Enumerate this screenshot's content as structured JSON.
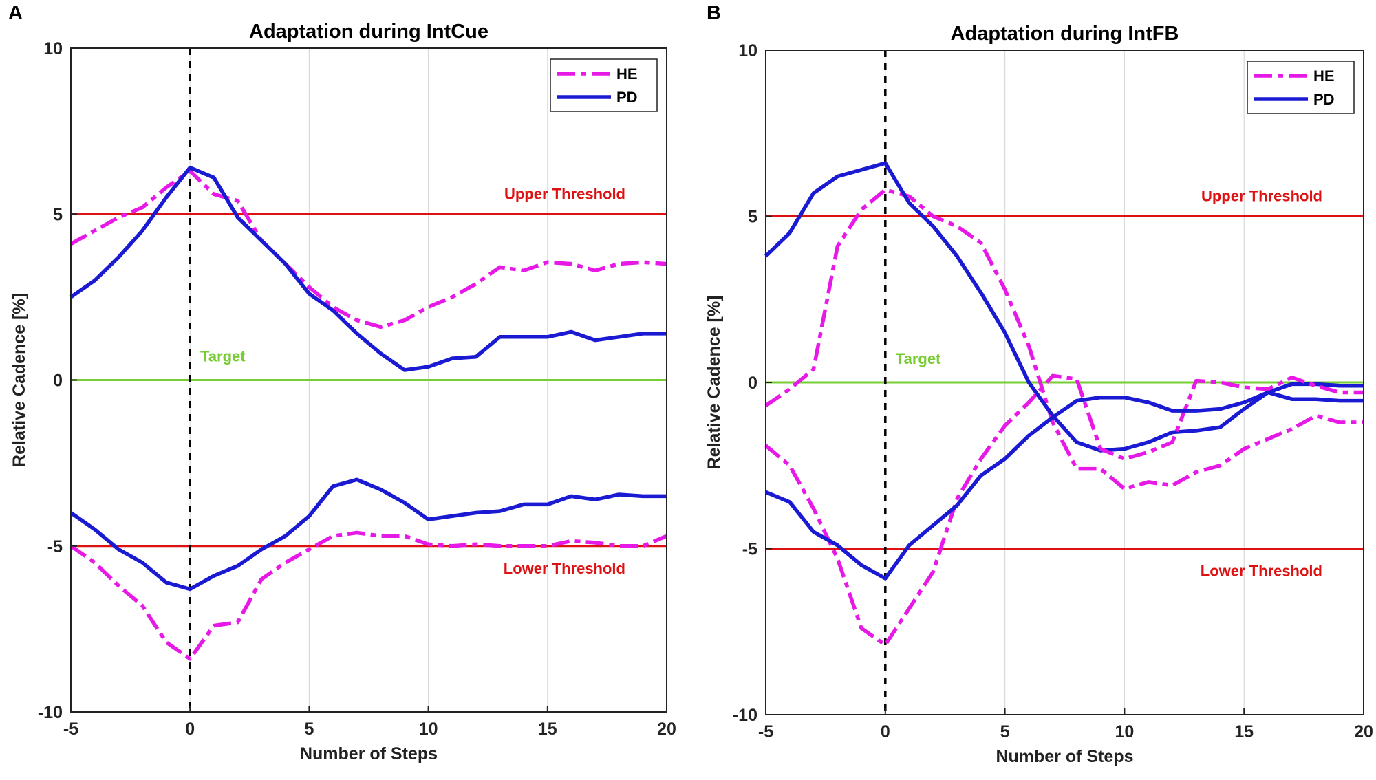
{
  "figure": {
    "colors": {
      "HE": "#e619e6",
      "PD": "#1a1ad2",
      "threshold": "#dd1111",
      "target": "#77cc33",
      "axis": "#222222",
      "grid": "#d9d9d9"
    }
  },
  "chart_data": [
    {
      "panel_letter": "A",
      "type": "line",
      "title": "Adaptation during IntCue",
      "xlabel": "Number of Steps",
      "ylabel": "Relative Cadence [%]",
      "xlim": [
        -5,
        20
      ],
      "ylim": [
        -10,
        10
      ],
      "xticks": [
        "-5",
        "0",
        "5",
        "10",
        "15",
        "20"
      ],
      "yticks": [
        "-10",
        "-5",
        "0",
        "5",
        "10"
      ],
      "grid": "vertical lines",
      "legend": {
        "position": "top-right",
        "entries": [
          "HE",
          "PD"
        ]
      },
      "reference_lines": [
        {
          "label": "Upper Threshold",
          "y": 5,
          "color": "threshold"
        },
        {
          "label": "Target",
          "y": 0,
          "color": "target"
        },
        {
          "label": "Lower Threshold",
          "y": -5,
          "color": "threshold"
        }
      ],
      "vertical_marker_x": 0,
      "x": [
        -5,
        -4,
        -3,
        -2,
        -1,
        0,
        1,
        2,
        3,
        4,
        5,
        6,
        7,
        8,
        9,
        10,
        11,
        12,
        13,
        14,
        15,
        16,
        17,
        18,
        19,
        20
      ],
      "series": [
        {
          "name": "HE",
          "style": "dashdot",
          "values": [
            4.1,
            4.5,
            4.9,
            5.2,
            5.8,
            6.3,
            5.6,
            5.4,
            4.2,
            3.5,
            2.8,
            2.2,
            1.8,
            1.6,
            1.8,
            2.2,
            2.5,
            2.9,
            3.4,
            3.3,
            3.55,
            3.5,
            3.3,
            3.5,
            3.55,
            3.5
          ]
        },
        {
          "name": "PD",
          "style": "solid",
          "values": [
            2.5,
            3.0,
            3.7,
            4.5,
            5.5,
            6.4,
            6.1,
            4.9,
            4.2,
            3.5,
            2.6,
            2.1,
            1.4,
            0.8,
            0.3,
            0.4,
            0.65,
            0.7,
            1.3,
            1.3,
            1.3,
            1.45,
            1.2,
            1.3,
            1.4,
            1.4
          ]
        },
        {
          "name": "HE",
          "style": "dashdot",
          "values": [
            -5.0,
            -5.5,
            -6.2,
            -6.8,
            -7.9,
            -8.4,
            -7.4,
            -7.3,
            -6.0,
            -5.5,
            -5.1,
            -4.7,
            -4.6,
            -4.7,
            -4.7,
            -4.95,
            -5.0,
            -4.95,
            -5.0,
            -5.0,
            -5.0,
            -4.85,
            -4.9,
            -5.0,
            -5.0,
            -4.7
          ]
        },
        {
          "name": "PD",
          "style": "solid",
          "values": [
            -4.0,
            -4.5,
            -5.1,
            -5.5,
            -6.1,
            -6.3,
            -5.9,
            -5.6,
            -5.1,
            -4.7,
            -4.1,
            -3.2,
            -3.0,
            -3.3,
            -3.7,
            -4.2,
            -4.1,
            -4.0,
            -3.95,
            -3.75,
            -3.75,
            -3.5,
            -3.6,
            -3.45,
            -3.5,
            -3.5
          ]
        }
      ]
    },
    {
      "panel_letter": "B",
      "type": "line",
      "title": "Adaptation during IntFB",
      "xlabel": "Number of Steps",
      "ylabel": "Relative Cadence [%]",
      "xlim": [
        -5,
        20
      ],
      "ylim": [
        -10,
        10
      ],
      "xticks": [
        "-5",
        "0",
        "5",
        "10",
        "15",
        "20"
      ],
      "yticks": [
        "-10",
        "-5",
        "0",
        "5",
        "10"
      ],
      "grid": "vertical lines",
      "legend": {
        "position": "top-right",
        "entries": [
          "HE",
          "PD"
        ]
      },
      "reference_lines": [
        {
          "label": "Upper Threshold",
          "y": 5,
          "color": "threshold"
        },
        {
          "label": "Target",
          "y": 0,
          "color": "target"
        },
        {
          "label": "Lower Threshold",
          "y": -5,
          "color": "threshold"
        }
      ],
      "vertical_marker_x": 0,
      "x": [
        -5,
        -4,
        -3,
        -2,
        -1,
        0,
        1,
        2,
        3,
        4,
        5,
        6,
        7,
        8,
        9,
        10,
        11,
        12,
        13,
        14,
        15,
        16,
        17,
        18,
        19,
        20
      ],
      "series": [
        {
          "name": "HE",
          "style": "dashdot",
          "values": [
            -0.7,
            -0.2,
            0.4,
            4.1,
            5.2,
            5.8,
            5.6,
            5.0,
            4.7,
            4.2,
            2.8,
            1.1,
            -1.2,
            -2.6,
            -2.6,
            -3.2,
            -3.0,
            -3.1,
            -2.7,
            -2.5,
            -2.0,
            -1.7,
            -1.4,
            -1.0,
            -1.2,
            -1.2
          ]
        },
        {
          "name": "PD",
          "style": "solid",
          "values": [
            3.8,
            4.5,
            5.7,
            6.2,
            6.4,
            6.6,
            5.4,
            4.7,
            3.8,
            2.7,
            1.5,
            0.0,
            -1.0,
            -1.8,
            -2.05,
            -2.0,
            -1.8,
            -1.5,
            -1.45,
            -1.35,
            -0.8,
            -0.3,
            -0.05,
            -0.05,
            -0.1,
            -0.1
          ]
        },
        {
          "name": "HE",
          "style": "dashdot",
          "values": [
            -1.9,
            -2.5,
            -3.8,
            -5.3,
            -7.4,
            -7.9,
            -6.8,
            -5.7,
            -3.5,
            -2.3,
            -1.3,
            -0.6,
            0.2,
            0.1,
            -2.0,
            -2.3,
            -2.1,
            -1.8,
            0.05,
            0.0,
            -0.15,
            -0.2,
            0.15,
            -0.1,
            -0.3,
            -0.3
          ]
        },
        {
          "name": "PD",
          "style": "solid",
          "values": [
            -3.3,
            -3.6,
            -4.5,
            -4.9,
            -5.5,
            -5.9,
            -4.9,
            -4.3,
            -3.7,
            -2.8,
            -2.3,
            -1.6,
            -1.05,
            -0.55,
            -0.45,
            -0.45,
            -0.6,
            -0.85,
            -0.85,
            -0.8,
            -0.6,
            -0.3,
            -0.5,
            -0.5,
            -0.55,
            -0.55
          ]
        }
      ]
    }
  ]
}
